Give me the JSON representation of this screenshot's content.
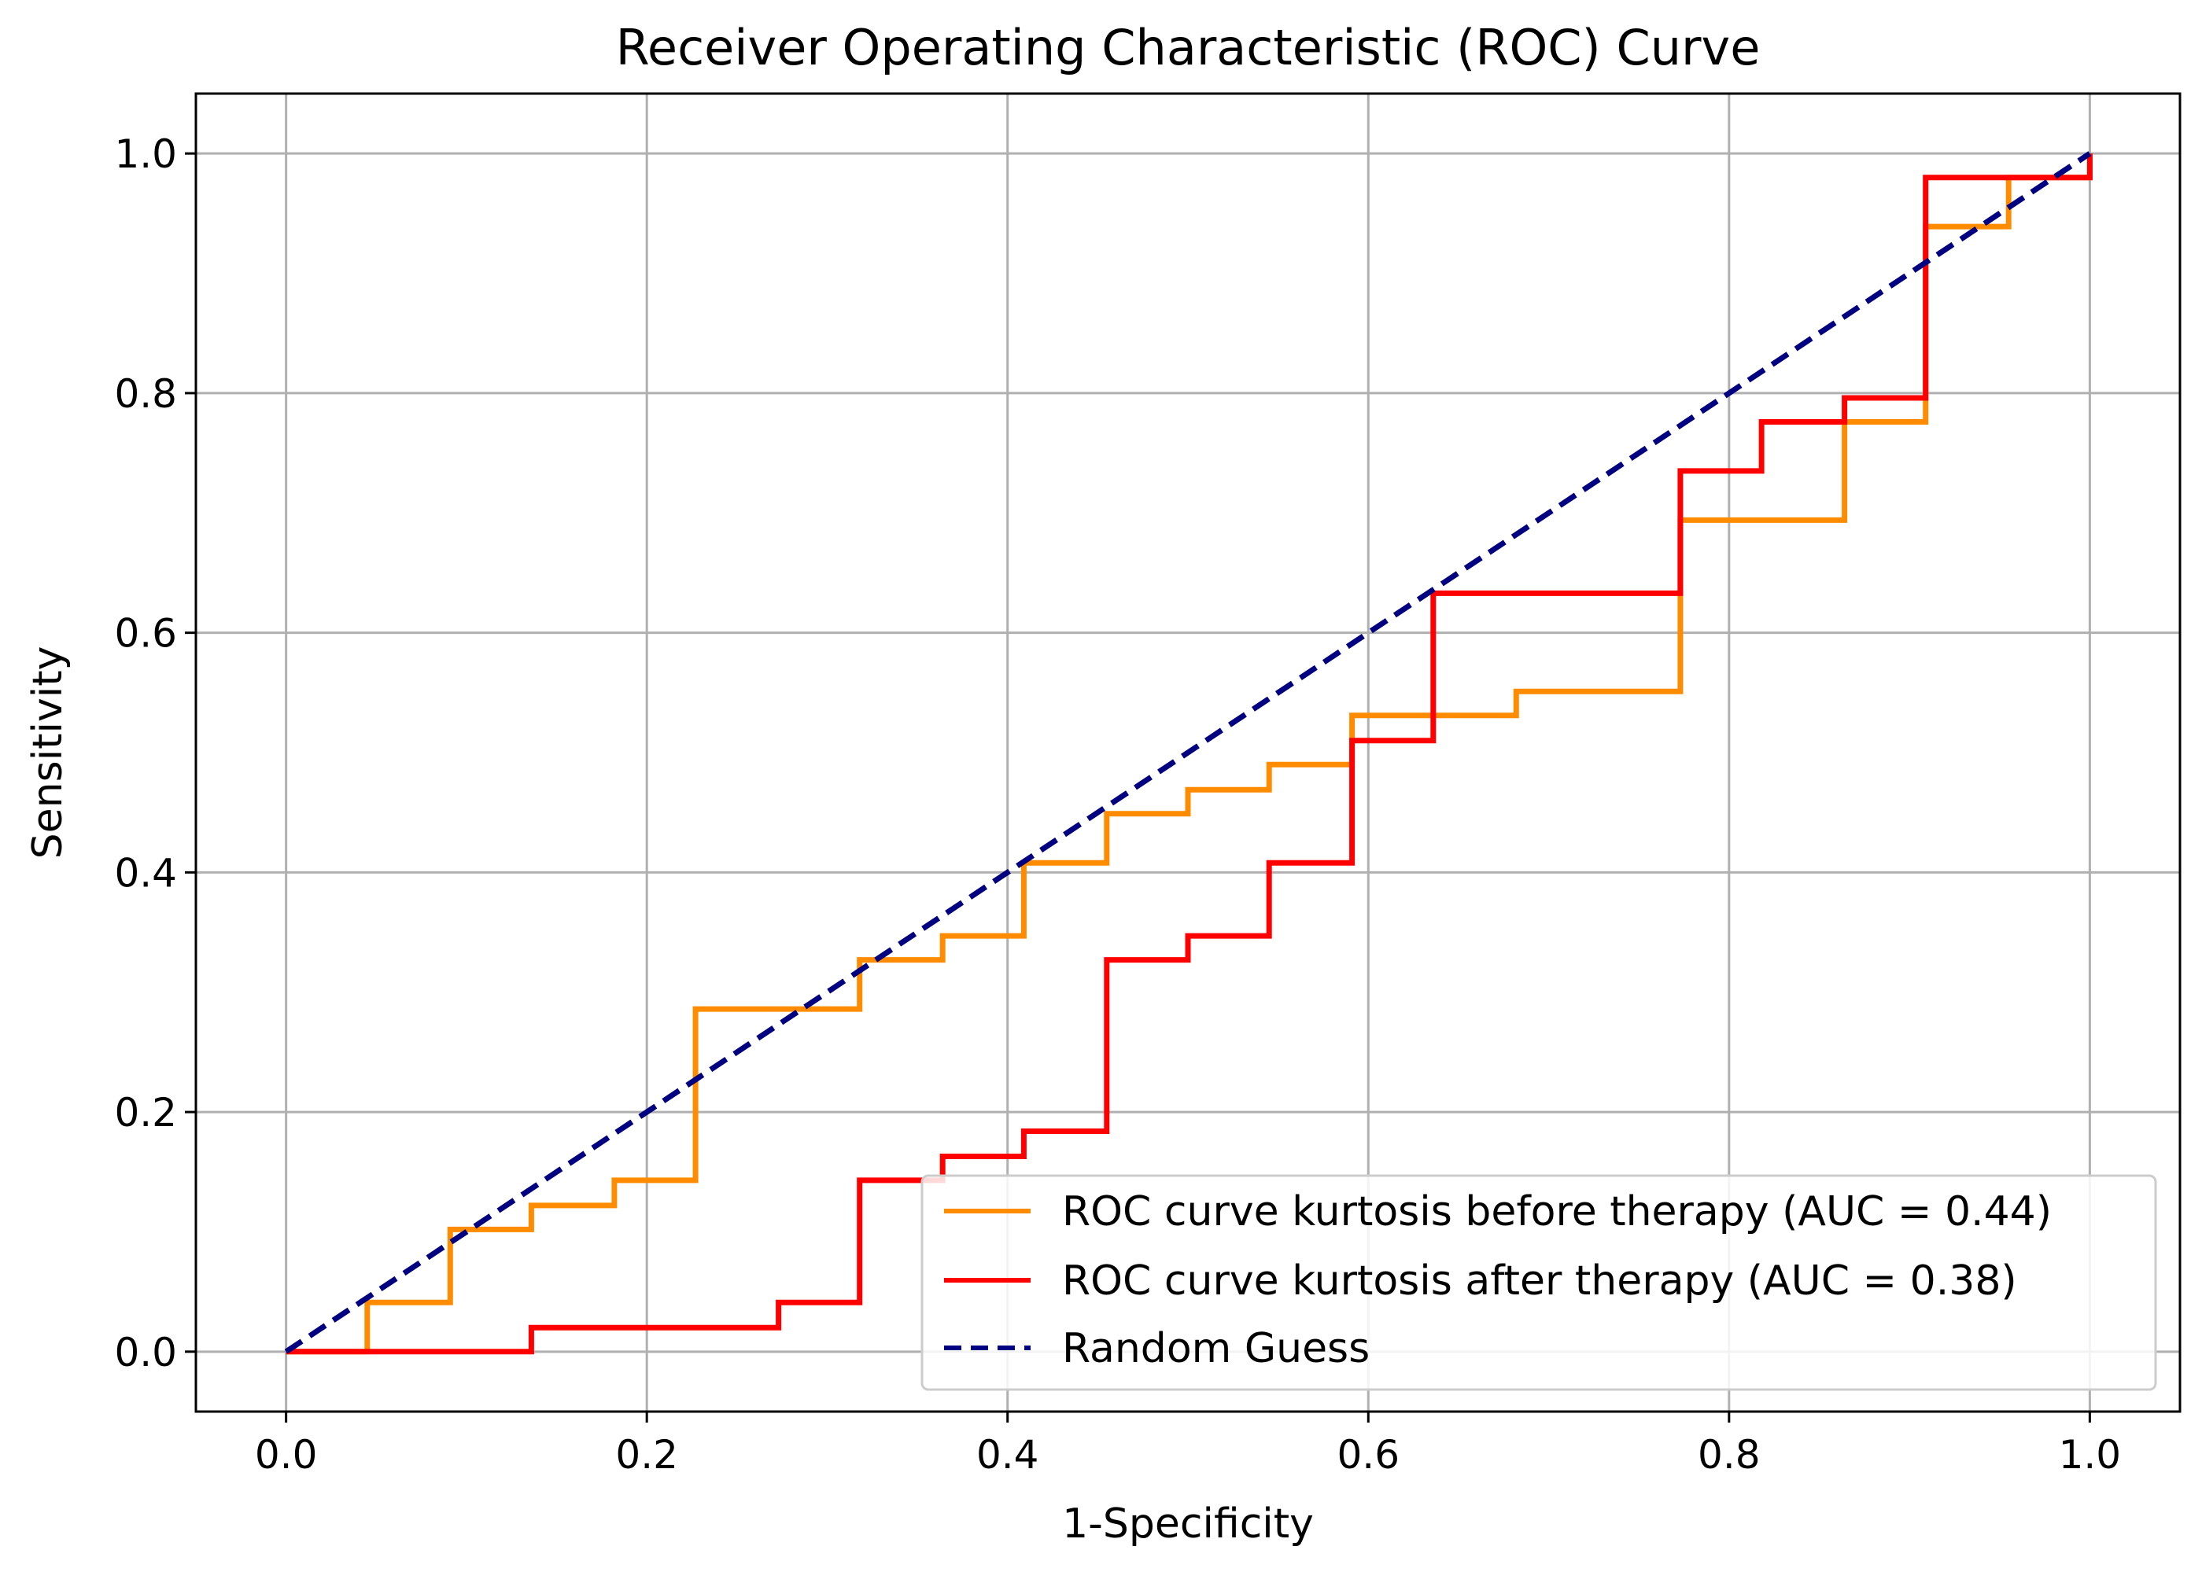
{
  "chart_data": {
    "type": "line",
    "title": "Receiver Operating Characteristic (ROC) Curve",
    "xlabel": "1-Specificity",
    "ylabel": "Sensitivity",
    "xlim": [
      -0.05,
      1.05
    ],
    "ylim": [
      -0.05,
      1.05
    ],
    "xticks": [
      "0.0",
      "0.2",
      "0.4",
      "0.6",
      "0.8",
      "1.0"
    ],
    "yticks": [
      "0.0",
      "0.2",
      "0.4",
      "0.6",
      "0.8",
      "1.0"
    ],
    "grid": true,
    "legend_position": "lower-right",
    "series": [
      {
        "name": "ROC curve kurtosis before therapy (AUC = 0.44)",
        "color": "#ff8c00",
        "style": "solid",
        "x": [
          0,
          0.045,
          0.045,
          0.091,
          0.091,
          0.136,
          0.136,
          0.182,
          0.182,
          0.227,
          0.227,
          0.318,
          0.318,
          0.364,
          0.364,
          0.409,
          0.409,
          0.455,
          0.455,
          0.5,
          0.5,
          0.545,
          0.545,
          0.591,
          0.591,
          0.682,
          0.682,
          0.773,
          0.773,
          0.864,
          0.864,
          0.909,
          0.909,
          0.955,
          0.955,
          1.0,
          1.0
        ],
        "y": [
          0,
          0,
          0.041,
          0.041,
          0.102,
          0.102,
          0.122,
          0.122,
          0.143,
          0.143,
          0.286,
          0.286,
          0.327,
          0.327,
          0.347,
          0.347,
          0.408,
          0.408,
          0.449,
          0.449,
          0.469,
          0.469,
          0.49,
          0.49,
          0.531,
          0.531,
          0.551,
          0.551,
          0.694,
          0.694,
          0.776,
          0.776,
          0.939,
          0.939,
          0.98,
          0.98,
          1.0
        ]
      },
      {
        "name": "ROC curve kurtosis after therapy (AUC = 0.38)",
        "color": "#ff0000",
        "style": "solid",
        "x": [
          0,
          0.136,
          0.136,
          0.273,
          0.273,
          0.318,
          0.318,
          0.364,
          0.364,
          0.409,
          0.409,
          0.455,
          0.455,
          0.5,
          0.5,
          0.545,
          0.545,
          0.591,
          0.591,
          0.636,
          0.636,
          0.773,
          0.773,
          0.818,
          0.818,
          0.864,
          0.864,
          0.909,
          0.909,
          1.0,
          1.0
        ],
        "y": [
          0,
          0,
          0.02,
          0.02,
          0.041,
          0.041,
          0.143,
          0.143,
          0.163,
          0.163,
          0.184,
          0.184,
          0.327,
          0.327,
          0.347,
          0.347,
          0.408,
          0.408,
          0.51,
          0.51,
          0.633,
          0.633,
          0.735,
          0.735,
          0.776,
          0.776,
          0.796,
          0.796,
          0.98,
          0.98,
          1.0
        ]
      },
      {
        "name": "Random Guess",
        "color": "#000080",
        "style": "dashed",
        "x": [
          0,
          1
        ],
        "y": [
          0,
          1
        ]
      }
    ]
  }
}
